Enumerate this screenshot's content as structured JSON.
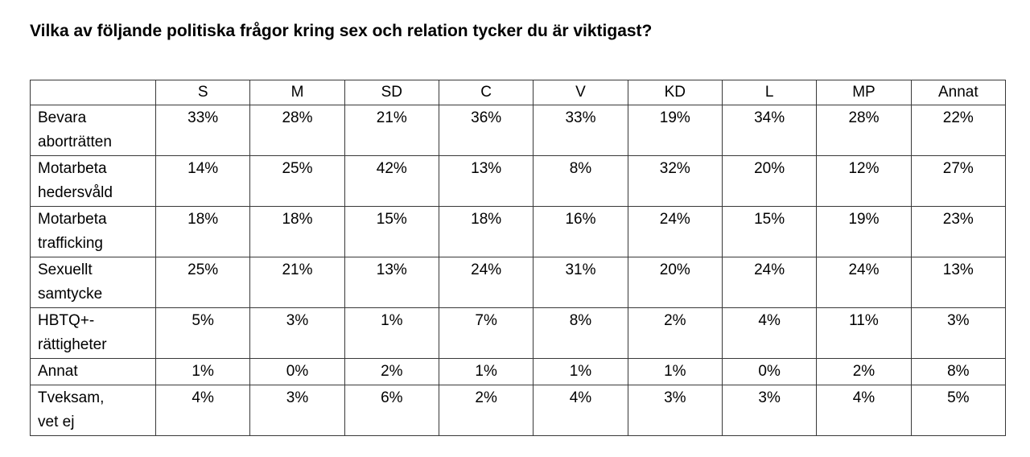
{
  "page": {
    "title": "Vilka av följande politiska frågor kring sex och relation tycker du är viktigast?"
  },
  "table": {
    "header": [
      "",
      "S",
      "M",
      "SD",
      "C",
      "V",
      "KD",
      "L",
      "MP",
      "Annat"
    ],
    "rows": [
      {
        "label": "Bevara\naborträtten",
        "cells": [
          "33%",
          "28%",
          "21%",
          "36%",
          "33%",
          "19%",
          "34%",
          "28%",
          "22%"
        ]
      },
      {
        "label": "Motarbeta\nhedersvåld",
        "cells": [
          "14%",
          "25%",
          "42%",
          "13%",
          "8%",
          "32%",
          "20%",
          "12%",
          "27%"
        ]
      },
      {
        "label": "Motarbeta\ntrafficking",
        "cells": [
          "18%",
          "18%",
          "15%",
          "18%",
          "16%",
          "24%",
          "15%",
          "19%",
          "23%"
        ]
      },
      {
        "label": "Sexuellt\nsamtycke",
        "cells": [
          "25%",
          "21%",
          "13%",
          "24%",
          "31%",
          "20%",
          "24%",
          "24%",
          "13%"
        ]
      },
      {
        "label": "HBTQ+-\nrättigheter",
        "cells": [
          "5%",
          "3%",
          "1%",
          "7%",
          "8%",
          "2%",
          "4%",
          "11%",
          "3%"
        ]
      },
      {
        "label": "Annat",
        "cells": [
          "1%",
          "0%",
          "2%",
          "1%",
          "1%",
          "1%",
          "0%",
          "2%",
          "8%"
        ]
      },
      {
        "label": "Tveksam,\nvet ej",
        "cells": [
          "4%",
          "3%",
          "6%",
          "2%",
          "4%",
          "3%",
          "3%",
          "4%",
          "5%"
        ]
      }
    ]
  },
  "chart_data": {
    "type": "table",
    "title": "Vilka av följande politiska frågor kring sex och relation tycker du är viktigast?",
    "unit": "%",
    "columns": [
      "S",
      "M",
      "SD",
      "C",
      "V",
      "KD",
      "L",
      "MP",
      "Annat"
    ],
    "rows": [
      {
        "label": "Bevara aborträtten",
        "values_pct": [
          33,
          28,
          21,
          36,
          33,
          19,
          34,
          28,
          22
        ]
      },
      {
        "label": "Motarbeta hedersvåld",
        "values_pct": [
          14,
          25,
          42,
          13,
          8,
          32,
          20,
          12,
          27
        ]
      },
      {
        "label": "Motarbeta trafficking",
        "values_pct": [
          18,
          18,
          15,
          18,
          16,
          24,
          15,
          19,
          23
        ]
      },
      {
        "label": "Sexuellt samtycke",
        "values_pct": [
          25,
          21,
          13,
          24,
          31,
          20,
          24,
          24,
          13
        ]
      },
      {
        "label": "HBTQ+-rättigheter",
        "values_pct": [
          5,
          3,
          1,
          7,
          8,
          2,
          4,
          11,
          3
        ]
      },
      {
        "label": "Annat",
        "values_pct": [
          1,
          0,
          2,
          1,
          1,
          1,
          0,
          2,
          8
        ]
      },
      {
        "label": "Tveksam, vet ej",
        "values_pct": [
          4,
          3,
          6,
          2,
          4,
          3,
          3,
          4,
          5
        ]
      }
    ]
  }
}
